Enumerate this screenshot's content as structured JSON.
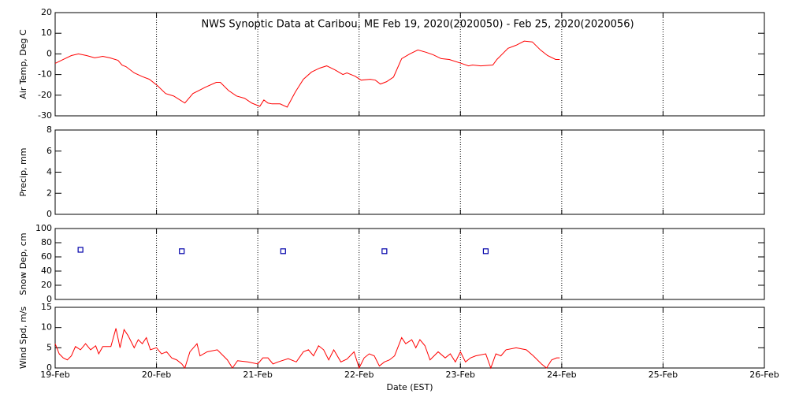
{
  "chart_data": [
    {
      "type": "line",
      "title": "NWS Synoptic Data at Caribou, ME   Feb 19, 2020(2020050) - Feb 25, 2020(2020056)",
      "ylabel": "Air Temp, Deg C",
      "xlim": [
        0,
        7
      ],
      "ylim": [
        -30,
        20
      ],
      "yticks": [
        -30,
        -20,
        -10,
        0,
        10,
        20
      ],
      "x": [
        0,
        0.08,
        0.16,
        0.23,
        0.31,
        0.39,
        0.47,
        0.54,
        0.62,
        0.66,
        0.7,
        0.78,
        0.86,
        0.93,
        1.01,
        1.09,
        1.17,
        1.28,
        1.36,
        1.48,
        1.59,
        1.63,
        1.71,
        1.79,
        1.87,
        1.94,
        2.02,
        2.06,
        2.1,
        2.14,
        2.22,
        2.29,
        2.37,
        2.45,
        2.53,
        2.61,
        2.68,
        2.76,
        2.84,
        2.88,
        2.96,
        3.02,
        3.11,
        3.16,
        3.21,
        3.27,
        3.34,
        3.42,
        3.5,
        3.58,
        3.66,
        3.73,
        3.81,
        3.89,
        4.01,
        4.08,
        4.12,
        4.2,
        4.32,
        4.36,
        4.47,
        4.55,
        4.63,
        4.71,
        4.79,
        4.86,
        4.94,
        4.98
      ],
      "series": [
        {
          "color": "#ff0000",
          "values": [
            -4.6,
            -2.7,
            -0.8,
            0,
            -0.8,
            -1.9,
            -1.2,
            -1.9,
            -3.1,
            -5.4,
            -6.2,
            -9.2,
            -11,
            -12.3,
            -15.4,
            -19.2,
            -20.4,
            -23.8,
            -19.2,
            -16.2,
            -13.8,
            -13.8,
            -17.7,
            -20.4,
            -21.5,
            -23.8,
            -25.4,
            -22.3,
            -23.8,
            -24.2,
            -24.2,
            -25.8,
            -18.5,
            -12.3,
            -8.8,
            -6.9,
            -5.8,
            -7.7,
            -10,
            -9.2,
            -10.8,
            -12.7,
            -12.3,
            -12.7,
            -14.6,
            -13.5,
            -11.2,
            -2.3,
            0,
            1.9,
            0.8,
            -0.4,
            -2.3,
            -2.7,
            -4.6,
            -5.8,
            -5.4,
            -5.8,
            -5.4,
            -2.7,
            2.7,
            4.2,
            6.2,
            5.8,
            1.9,
            -0.8,
            -2.7,
            -2.7
          ]
        }
      ]
    },
    {
      "type": "bar",
      "ylabel": "Precip, mm",
      "xlim": [
        0,
        7
      ],
      "ylim": [
        0,
        8
      ],
      "yticks": [
        0,
        2,
        4,
        6,
        8
      ],
      "x": [
        0
      ],
      "series": [
        {
          "color": "#00ffff",
          "values": [
            0
          ]
        }
      ]
    },
    {
      "type": "scatter",
      "ylabel": "Snow Dep, cm",
      "xlim": [
        0,
        7
      ],
      "ylim": [
        0,
        100
      ],
      "yticks": [
        0,
        20,
        40,
        60,
        80,
        100
      ],
      "x": [
        0.25,
        1.25,
        2.25,
        3.25,
        4.25
      ],
      "series": [
        {
          "color": "#0000aa",
          "values": [
            70,
            68,
            68,
            68,
            68
          ]
        }
      ]
    },
    {
      "type": "line",
      "ylabel": "Wind Spd, m/s",
      "xlabel": "Date (EST)",
      "xlim": [
        0,
        7
      ],
      "ylim": [
        0,
        15
      ],
      "yticks": [
        0,
        5,
        10,
        15
      ],
      "xticks": [
        {
          "value": 0,
          "label": "19-Feb"
        },
        {
          "value": 1,
          "label": "20-Feb"
        },
        {
          "value": 2,
          "label": "21-Feb"
        },
        {
          "value": 3,
          "label": "22-Feb"
        },
        {
          "value": 4,
          "label": "23-Feb"
        },
        {
          "value": 5,
          "label": "24-Feb"
        },
        {
          "value": 6,
          "label": "25-Feb"
        },
        {
          "value": 7,
          "label": "26-Feb"
        }
      ],
      "x": [
        0,
        0.04,
        0.08,
        0.12,
        0.16,
        0.2,
        0.25,
        0.3,
        0.35,
        0.4,
        0.43,
        0.47,
        0.55,
        0.6,
        0.64,
        0.68,
        0.72,
        0.78,
        0.82,
        0.86,
        0.9,
        0.94,
        1.0,
        1.05,
        1.1,
        1.15,
        1.2,
        1.25,
        1.28,
        1.33,
        1.4,
        1.43,
        1.5,
        1.6,
        1.7,
        1.75,
        1.8,
        1.9,
        2.0,
        2.05,
        2.1,
        2.15,
        2.2,
        2.3,
        2.38,
        2.45,
        2.5,
        2.55,
        2.6,
        2.65,
        2.7,
        2.75,
        2.82,
        2.88,
        2.95,
        3.0,
        3.05,
        3.1,
        3.15,
        3.2,
        3.25,
        3.3,
        3.35,
        3.42,
        3.46,
        3.52,
        3.56,
        3.6,
        3.65,
        3.7,
        3.78,
        3.85,
        3.9,
        3.95,
        4.0,
        4.05,
        4.1,
        4.15,
        4.25,
        4.3,
        4.35,
        4.4,
        4.45,
        4.55,
        4.65,
        4.72,
        4.8,
        4.85,
        4.9,
        4.95,
        4.98
      ],
      "series": [
        {
          "color": "#ff0000",
          "values": [
            6,
            3.5,
            2.5,
            2,
            3,
            5.3,
            4.5,
            6,
            4.5,
            5.5,
            3.5,
            5.3,
            5.3,
            9.8,
            5,
            9.5,
            8,
            5,
            7,
            6,
            7.5,
            4.5,
            5,
            3.5,
            4,
            2.5,
            2,
            1,
            0,
            4,
            6,
            3,
            4,
            4.5,
            2,
            0,
            1.8,
            1.5,
            1,
            2.5,
            2.5,
            1,
            1.5,
            2.3,
            1.5,
            4,
            4.5,
            3,
            5.5,
            4.5,
            2,
            4.5,
            1.5,
            2.2,
            4,
            0,
            2.5,
            3.5,
            3,
            0.5,
            1.5,
            2,
            3,
            7.5,
            6,
            7,
            5,
            7,
            5.5,
            2,
            4,
            2.5,
            3.5,
            1.5,
            4,
            1.5,
            2.5,
            3,
            3.5,
            0,
            3.5,
            3,
            4.5,
            5,
            4.5,
            3,
            1,
            0,
            2,
            2.5,
            2.5
          ]
        }
      ]
    }
  ]
}
